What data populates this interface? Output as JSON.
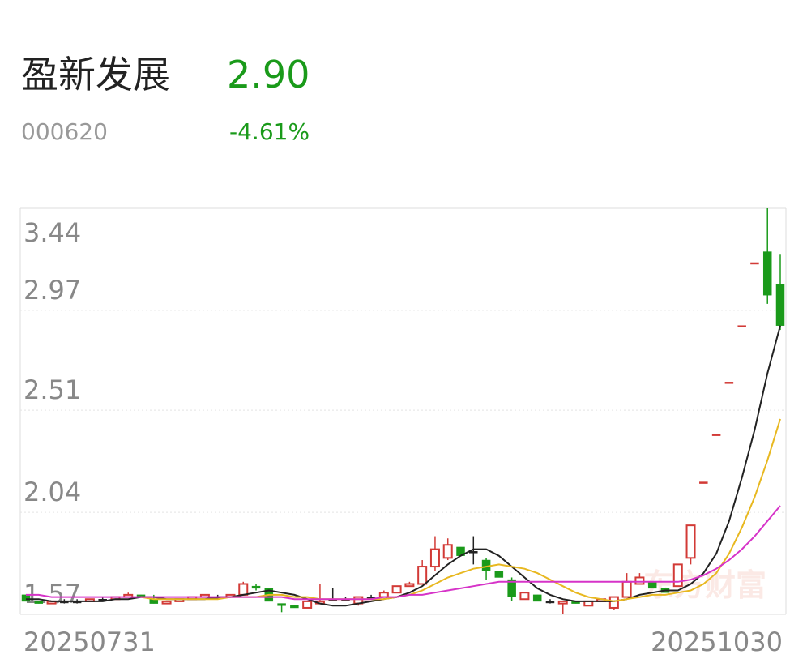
{
  "chart_data": {
    "type": "candlestick",
    "title": "盈新发展",
    "price": "2.90",
    "code": "000620",
    "change": "-4.61%",
    "watermark": "东方财富",
    "up_color": "#d23a36",
    "down_color": "#1a9a1a",
    "flat_color": "#222222",
    "price_color": "#1a9a1a",
    "categories": [
      "20250731",
      null,
      null,
      null,
      null,
      null,
      null,
      null,
      null,
      null,
      null,
      null,
      null,
      null,
      null,
      null,
      null,
      null,
      null,
      null,
      null,
      null,
      null,
      null,
      null,
      null,
      null,
      null,
      null,
      null,
      null,
      null,
      null,
      null,
      null,
      null,
      null,
      null,
      null,
      null,
      null,
      null,
      null,
      null,
      null,
      null,
      null,
      null,
      null,
      null,
      null,
      null,
      null,
      null,
      null,
      null,
      null,
      null,
      null,
      "20251030"
    ],
    "open": [
      1.66,
      1.63,
      1.62,
      1.63,
      1.63,
      1.63,
      1.64,
      1.64,
      1.65,
      1.66,
      1.64,
      1.62,
      1.63,
      1.64,
      1.65,
      1.65,
      1.65,
      1.66,
      1.7,
      1.69,
      1.62,
      1.61,
      1.6,
      1.62,
      1.64,
      1.64,
      1.62,
      1.65,
      1.65,
      1.67,
      1.7,
      1.71,
      1.79,
      1.83,
      1.88,
      1.86,
      1.82,
      1.77,
      1.73,
      1.64,
      1.66,
      1.63,
      1.62,
      1.63,
      1.61,
      1.63,
      1.6,
      1.65,
      1.71,
      1.72,
      1.69,
      1.7,
      1.83,
      2.18,
      2.4,
      2.64,
      2.9,
      3.19,
      3.24,
      3.09
    ],
    "high": [
      1.66,
      1.63,
      1.63,
      1.64,
      1.64,
      1.64,
      1.65,
      1.65,
      1.67,
      1.66,
      1.66,
      1.63,
      1.64,
      1.65,
      1.66,
      1.66,
      1.66,
      1.72,
      1.71,
      1.69,
      1.62,
      1.61,
      1.63,
      1.71,
      1.69,
      1.65,
      1.65,
      1.66,
      1.68,
      1.7,
      1.72,
      1.82,
      1.93,
      1.92,
      1.88,
      1.93,
      1.83,
      1.77,
      1.74,
      1.67,
      1.66,
      1.64,
      1.63,
      1.63,
      1.63,
      1.64,
      1.65,
      1.76,
      1.76,
      1.72,
      1.69,
      1.8,
      1.98,
      2.18,
      2.4,
      2.64,
      2.9,
      3.19,
      3.44,
      3.23
    ],
    "low": [
      1.63,
      1.62,
      1.62,
      1.62,
      1.62,
      1.63,
      1.63,
      1.64,
      1.65,
      1.65,
      1.62,
      1.62,
      1.63,
      1.64,
      1.65,
      1.64,
      1.65,
      1.66,
      1.68,
      1.63,
      1.58,
      1.6,
      1.6,
      1.62,
      1.63,
      1.63,
      1.61,
      1.64,
      1.65,
      1.67,
      1.7,
      1.71,
      1.77,
      1.82,
      1.84,
      1.8,
      1.73,
      1.74,
      1.63,
      1.64,
      1.63,
      1.62,
      1.57,
      1.62,
      1.61,
      1.63,
      1.59,
      1.65,
      1.71,
      1.69,
      1.67,
      1.7,
      1.8,
      2.18,
      2.4,
      2.64,
      2.9,
      3.19,
      3.0,
      2.88
    ],
    "close": [
      1.63,
      1.62,
      1.63,
      1.63,
      1.63,
      1.64,
      1.64,
      1.65,
      1.66,
      1.65,
      1.62,
      1.63,
      1.64,
      1.65,
      1.66,
      1.65,
      1.66,
      1.71,
      1.69,
      1.63,
      1.61,
      1.6,
      1.63,
      1.63,
      1.64,
      1.64,
      1.65,
      1.65,
      1.67,
      1.7,
      1.71,
      1.79,
      1.87,
      1.89,
      1.84,
      1.86,
      1.77,
      1.74,
      1.65,
      1.67,
      1.63,
      1.63,
      1.63,
      1.62,
      1.63,
      1.64,
      1.65,
      1.72,
      1.74,
      1.69,
      1.67,
      1.8,
      1.98,
      2.18,
      2.4,
      2.64,
      2.9,
      3.19,
      3.04,
      2.9
    ],
    "series": [
      {
        "color": "#222222",
        "values": [
          1.64,
          1.64,
          1.63,
          1.63,
          1.63,
          1.63,
          1.63,
          1.64,
          1.64,
          1.65,
          1.65,
          1.64,
          1.64,
          1.64,
          1.64,
          1.65,
          1.65,
          1.66,
          1.67,
          1.68,
          1.67,
          1.66,
          1.64,
          1.62,
          1.61,
          1.61,
          1.62,
          1.63,
          1.64,
          1.65,
          1.67,
          1.7,
          1.75,
          1.8,
          1.84,
          1.87,
          1.87,
          1.84,
          1.79,
          1.74,
          1.69,
          1.66,
          1.64,
          1.63,
          1.63,
          1.63,
          1.63,
          1.64,
          1.66,
          1.67,
          1.68,
          1.68,
          1.71,
          1.76,
          1.85,
          2.0,
          2.2,
          2.42,
          2.68,
          2.9
        ]
      },
      {
        "color": "#e8b820",
        "values": [
          null,
          null,
          null,
          null,
          null,
          null,
          null,
          null,
          null,
          1.65,
          1.64,
          1.64,
          1.64,
          1.64,
          1.64,
          1.64,
          1.65,
          1.65,
          1.65,
          1.66,
          1.66,
          1.65,
          1.65,
          1.64,
          1.64,
          1.64,
          1.64,
          1.64,
          1.64,
          1.65,
          1.66,
          1.68,
          1.71,
          1.74,
          1.76,
          1.78,
          1.79,
          1.8,
          1.79,
          1.78,
          1.76,
          1.73,
          1.7,
          1.67,
          1.65,
          1.64,
          1.63,
          1.64,
          1.65,
          1.66,
          1.66,
          1.67,
          1.68,
          1.71,
          1.76,
          1.85,
          1.97,
          2.11,
          2.28,
          2.47
        ]
      },
      {
        "color": "#d633c8",
        "values": [
          1.66,
          1.66,
          1.65,
          1.65,
          1.65,
          1.65,
          1.65,
          1.65,
          1.65,
          1.65,
          1.65,
          1.65,
          1.65,
          1.65,
          1.65,
          1.65,
          1.65,
          1.65,
          1.65,
          1.65,
          1.65,
          1.64,
          1.64,
          1.64,
          1.64,
          1.64,
          1.64,
          1.64,
          1.65,
          1.65,
          1.66,
          1.66,
          1.67,
          1.68,
          1.69,
          1.7,
          1.71,
          1.72,
          1.72,
          1.72,
          1.72,
          1.72,
          1.72,
          1.72,
          1.72,
          1.72,
          1.72,
          1.72,
          1.72,
          1.72,
          1.72,
          1.72,
          1.73,
          1.75,
          1.78,
          1.82,
          1.87,
          1.93,
          2.0,
          2.07
        ]
      }
    ],
    "ylim": [
      1.57,
      3.44
    ],
    "yticks": [
      1.57,
      2.04,
      2.51,
      2.97,
      3.44
    ],
    "grid": true
  }
}
